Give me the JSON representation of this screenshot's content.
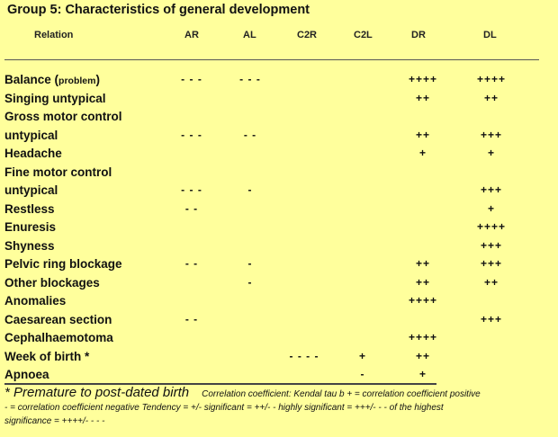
{
  "title": "Group 5:  Characteristics of general development",
  "columns": [
    "Relation",
    "AR",
    "AL",
    "C2R",
    "C2L",
    "DR",
    "DL"
  ],
  "rows": [
    {
      "label": "Balance",
      "label_small": "(problem)",
      "AR": "- - -",
      "AL": "- - -",
      "C2R": "",
      "C2L": "",
      "DR": "++++",
      "DL": "++++"
    },
    {
      "label": "Singing  untypical",
      "AR": "",
      "AL": "",
      "C2R": "",
      "C2L": "",
      "DR": "++",
      "DL": "++"
    },
    {
      "label": "Gross motor control",
      "AR": "",
      "AL": "",
      "C2R": "",
      "C2L": "",
      "DR": "",
      "DL": ""
    },
    {
      "label": "untypical",
      "AR": "- - -",
      "AL": "- -",
      "C2R": "",
      "C2L": "",
      "DR": "++",
      "DL": "+++"
    },
    {
      "label": "Headache",
      "AR": "",
      "AL": "",
      "C2R": "",
      "C2L": "",
      "DR": "+",
      "DL": "+"
    },
    {
      "label": "Fine motor control",
      "AR": "",
      "AL": "",
      "C2R": "",
      "C2L": "",
      "DR": "",
      "DL": ""
    },
    {
      "label": "untypical",
      "AR": "- - -",
      "AL": "-",
      "C2R": "",
      "C2L": "",
      "DR": "",
      "DL": "+++"
    },
    {
      "label": "Restless",
      "AR": "- -",
      "AL": "",
      "C2R": "",
      "C2L": "",
      "DR": "",
      "DL": "+"
    },
    {
      "label": "Enuresis",
      "AR": "",
      "AL": "",
      "C2R": "",
      "C2L": "",
      "DR": "",
      "DL": "++++"
    },
    {
      "label": "Shyness",
      "AR": "",
      "AL": "",
      "C2R": "",
      "C2L": "",
      "DR": "",
      "DL": "+++"
    },
    {
      "label": "Pelvic ring blockage",
      "AR": "- -",
      "AL": "-",
      "C2R": "",
      "C2L": "",
      "DR": "++",
      "DL": "+++"
    },
    {
      "label": "Other blockages",
      "AR": "",
      "AL": "-",
      "C2R": "",
      "C2L": "",
      "DR": "++",
      "DL": "++"
    },
    {
      "label": "Anomalies",
      "AR": "",
      "AL": "",
      "C2R": "",
      "C2L": "",
      "DR": "++++",
      "DL": ""
    },
    {
      "label": "Caesarean section",
      "AR": "- -",
      "AL": "",
      "C2R": "",
      "C2L": "",
      "DR": "",
      "DL": "+++"
    },
    {
      "label": "Cephalhaemotoma",
      "AR": "",
      "AL": "",
      "C2R": "",
      "C2L": "",
      "DR": "++++",
      "DL": ""
    },
    {
      "label": "Week of birth *",
      "AR": "",
      "AL": "",
      "C2R": "- - - -",
      "C2L": "+",
      "DR": "++",
      "DL": ""
    },
    {
      "label": "Apnoea",
      "AR": "",
      "AL": "",
      "C2R": "",
      "C2L": "-",
      "DR": "+",
      "DL": ""
    }
  ],
  "footnote": {
    "asterisk": "* Premature to post-dated birth",
    "line1_rest": "Correlation coefficient:  Kendal tau b    + = correlation coefficient positive",
    "line2": "- = correlation coefficient negative Tendency = +/-    significant = ++/- -   highly significant = +++/- - -   of the highest",
    "line3": "significance = ++++/- - - -"
  },
  "colors": {
    "background": "#ffff9c",
    "text": "#111111"
  }
}
